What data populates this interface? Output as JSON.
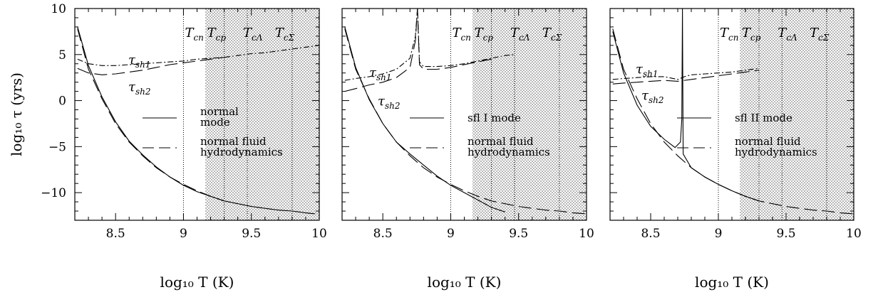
{
  "chart_data": [
    {
      "type": "line",
      "xlabel": "log₁₀ T  (K)",
      "ylabel": "log₁₀ τ  (yrs)",
      "xlim": [
        8.2,
        10
      ],
      "ylim": [
        -13,
        10
      ],
      "xticks": [
        "8.5",
        "9",
        "9.5",
        "10"
      ],
      "yticks": [
        "10",
        "5",
        "0",
        "-5",
        "-10"
      ],
      "shaded_from_x": 9.16,
      "verticals": [
        {
          "x": 9.0,
          "label": "T_cn"
        },
        {
          "x": 9.3,
          "label": "T_cp"
        },
        {
          "x": 9.47,
          "label": "T_cΛ"
        },
        {
          "x": 9.8,
          "label": "T_cΣ"
        }
      ],
      "legend": [
        {
          "style": "solid",
          "text": "normal mode"
        },
        {
          "style": "dashed",
          "text": "normal fluid hydrodynamics"
        }
      ],
      "annotations": [
        "τ_sh1",
        "τ_sh2"
      ],
      "series": [
        {
          "style": "solid",
          "x": [
            8.22,
            8.3,
            8.4,
            8.5,
            8.6,
            8.7,
            8.8,
            8.9,
            9.0,
            9.1,
            9.2,
            9.3,
            9.4,
            9.5,
            9.6,
            9.7,
            9.8,
            9.9,
            9.97
          ],
          "y": [
            8.0,
            3.8,
            0.4,
            -2.3,
            -4.4,
            -5.9,
            -7.2,
            -8.3,
            -9.2,
            -9.9,
            -10.4,
            -10.9,
            -11.2,
            -11.5,
            -11.7,
            -11.9,
            -12.0,
            -12.2,
            -12.3
          ]
        },
        {
          "style": "dashed",
          "x": [
            8.22,
            8.3,
            8.4,
            8.5,
            8.6,
            8.7,
            8.8,
            8.9,
            9.0,
            9.1,
            9.2,
            9.3
          ],
          "y": [
            7.8,
            3.4,
            0.2,
            -2.5,
            -4.5,
            -6.0,
            -7.3,
            -8.3,
            -9.1,
            -9.8,
            -10.4,
            -10.9
          ]
        },
        {
          "style": "dashdot",
          "x": [
            8.22,
            8.3,
            8.4,
            8.5,
            8.6,
            8.7,
            8.8,
            8.9,
            9.0,
            9.1,
            9.2,
            9.3,
            9.4,
            9.5,
            9.6,
            9.7,
            9.8,
            9.9,
            10.0
          ],
          "y": [
            4.5,
            4.0,
            3.8,
            3.8,
            3.9,
            4.0,
            4.1,
            4.2,
            4.3,
            4.5,
            4.6,
            4.7,
            4.9,
            5.1,
            5.2,
            5.4,
            5.6,
            5.8,
            6.0
          ]
        },
        {
          "style": "dashed",
          "x": [
            8.22,
            8.3,
            8.4,
            8.5,
            8.6,
            8.7,
            8.8,
            8.9,
            9.0,
            9.1,
            9.2,
            9.3
          ],
          "y": [
            3.5,
            3.0,
            2.8,
            2.9,
            3.1,
            3.3,
            3.6,
            3.9,
            4.1,
            4.3,
            4.5,
            4.7
          ]
        }
      ]
    },
    {
      "type": "line",
      "xlabel": "log₁₀ T  (K)",
      "xlim": [
        8.2,
        10
      ],
      "ylim": [
        -13,
        10
      ],
      "xticks": [
        "8.5",
        "9",
        "9.5",
        "10"
      ],
      "shaded_from_x": 9.16,
      "verticals": [
        {
          "x": 9.0,
          "label": "T_cn"
        },
        {
          "x": 9.3,
          "label": "T_cp"
        },
        {
          "x": 9.47,
          "label": "T_cΛ"
        },
        {
          "x": 9.8,
          "label": "T_cΣ"
        }
      ],
      "legend": [
        {
          "style": "solid",
          "text": "sfl I mode"
        },
        {
          "style": "dashed",
          "text": "normal fluid hydrodynamics"
        }
      ],
      "annotations": [
        "τ_sh1",
        "τ_sh2"
      ],
      "series": [
        {
          "style": "solid",
          "x": [
            8.22,
            8.3,
            8.4,
            8.5,
            8.6,
            8.7,
            8.8,
            8.9,
            9.0,
            9.1,
            9.2,
            9.3,
            9.4
          ],
          "y": [
            8.0,
            3.6,
            0.1,
            -2.5,
            -4.5,
            -5.8,
            -7.0,
            -8.2,
            -9.2,
            -10.0,
            -10.8,
            -11.6,
            -12.1
          ]
        },
        {
          "style": "dashed",
          "x": [
            8.22,
            8.3,
            8.4,
            8.5,
            8.6,
            8.7,
            8.8,
            8.9,
            9.0,
            9.1,
            9.2,
            9.3,
            9.4,
            9.5,
            9.6,
            9.7,
            9.8,
            9.9,
            10.0
          ],
          "y": [
            7.8,
            3.4,
            0.2,
            -2.5,
            -4.5,
            -6.0,
            -7.3,
            -8.3,
            -9.1,
            -9.8,
            -10.4,
            -10.9,
            -11.2,
            -11.5,
            -11.7,
            -11.9,
            -12.0,
            -12.2,
            -12.3
          ]
        },
        {
          "style": "dashdot",
          "x": [
            8.22,
            8.3,
            8.4,
            8.5,
            8.6,
            8.7,
            8.74,
            8.755,
            8.77,
            8.8,
            8.9,
            9.0,
            9.1,
            9.2,
            9.3,
            9.4,
            9.47
          ],
          "y": [
            2.2,
            2.4,
            2.6,
            2.9,
            3.4,
            4.6,
            7.0,
            10.0,
            4.2,
            3.7,
            3.7,
            3.8,
            4.0,
            4.3,
            4.6,
            4.9,
            5.0
          ]
        },
        {
          "style": "dashed",
          "x": [
            8.22,
            8.3,
            8.4,
            8.5,
            8.6,
            8.7,
            8.74,
            8.755,
            8.77,
            8.8,
            8.9,
            9.0,
            9.1,
            9.2,
            9.3
          ],
          "y": [
            1.0,
            1.3,
            1.7,
            2.0,
            2.5,
            3.6,
            6.5,
            10.0,
            3.9,
            3.4,
            3.4,
            3.6,
            3.9,
            4.2,
            4.5
          ]
        }
      ]
    },
    {
      "type": "line",
      "xlabel": "log₁₀ T  (K)",
      "xlim": [
        8.2,
        10
      ],
      "ylim": [
        -13,
        10
      ],
      "xticks": [
        "8.5",
        "9",
        "9.5",
        "10"
      ],
      "shaded_from_x": 9.16,
      "verticals": [
        {
          "x": 9.0,
          "label": "T_cn"
        },
        {
          "x": 9.3,
          "label": "T_cp"
        },
        {
          "x": 9.47,
          "label": "T_cΛ"
        },
        {
          "x": 9.8,
          "label": "T_cΣ"
        }
      ],
      "legend": [
        {
          "style": "solid",
          "text": "sfl II mode"
        },
        {
          "style": "dashed",
          "text": "normal fluid hydrodynamics"
        }
      ],
      "annotations": [
        "τ_sh1",
        "τ_sh2"
      ],
      "series": [
        {
          "style": "solid",
          "x": [
            8.22,
            8.3,
            8.4,
            8.5,
            8.6,
            8.68,
            8.72,
            8.73,
            8.735,
            8.74,
            8.8,
            8.9,
            9.0,
            9.1,
            9.2,
            9.3
          ],
          "y": [
            7.5,
            3.0,
            -0.5,
            -2.8,
            -4.2,
            -5.1,
            -4.5,
            -2.0,
            10.0,
            -5.8,
            -7.3,
            -8.3,
            -9.1,
            -9.8,
            -10.4,
            -10.9
          ]
        },
        {
          "style": "dashed",
          "x": [
            8.22,
            8.3,
            8.4,
            8.5,
            8.6,
            8.7,
            8.8,
            8.9,
            9.0,
            9.1,
            9.2,
            9.3,
            9.4,
            9.5,
            9.6,
            9.7,
            9.8,
            9.9,
            10.0
          ],
          "y": [
            7.8,
            3.4,
            0.2,
            -2.5,
            -4.5,
            -6.0,
            -7.3,
            -8.3,
            -9.1,
            -9.8,
            -10.4,
            -10.9,
            -11.2,
            -11.5,
            -11.7,
            -11.9,
            -12.0,
            -12.2,
            -12.3
          ]
        },
        {
          "style": "dashdot",
          "x": [
            8.22,
            8.3,
            8.4,
            8.5,
            8.6,
            8.7,
            8.75,
            8.8,
            8.9,
            9.0,
            9.1,
            9.2,
            9.3
          ],
          "y": [
            2.3,
            2.4,
            2.5,
            2.6,
            2.6,
            2.3,
            2.6,
            2.8,
            2.9,
            3.0,
            3.1,
            3.3,
            3.5
          ]
        },
        {
          "style": "dashed",
          "x": [
            8.22,
            8.3,
            8.4,
            8.5,
            8.6,
            8.7,
            8.8,
            8.9,
            9.0,
            9.1,
            9.2,
            9.3
          ],
          "y": [
            1.8,
            1.9,
            2.0,
            2.1,
            2.2,
            2.1,
            2.3,
            2.5,
            2.7,
            2.9,
            3.1,
            3.3
          ]
        }
      ]
    }
  ]
}
